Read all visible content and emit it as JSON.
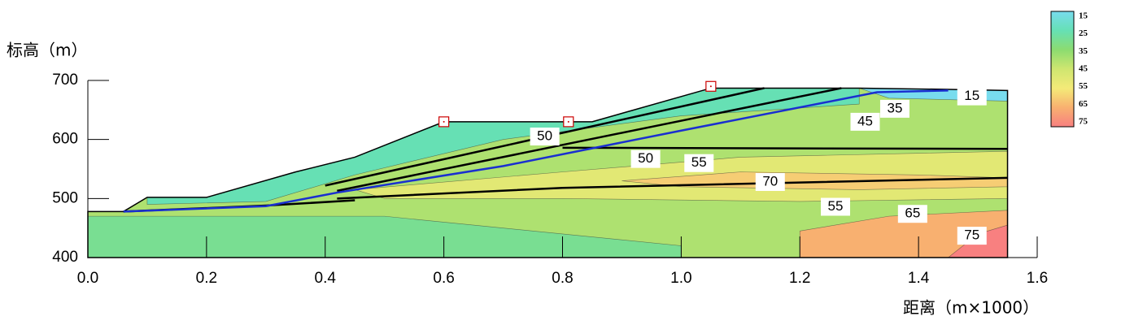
{
  "chart_data": {
    "type": "contour",
    "y_label": "标高（m）",
    "x_label": "距离（m×1000）",
    "xlim": [
      0,
      1.6
    ],
    "xticks": [
      {
        "value": 0,
        "label": "0.0"
      },
      0.2,
      0.4,
      0.6,
      0.8,
      {
        "value": 1,
        "label": "1.0"
      },
      1.2,
      1.4,
      1.6
    ],
    "ylim": [
      400,
      700
    ],
    "yticks": [
      400,
      500,
      600,
      700
    ],
    "colorbar": {
      "ticks": [
        15,
        25,
        35,
        45,
        55,
        65,
        75
      ],
      "colors": [
        "#78dcee",
        "#66e0b4",
        "#8cdc70",
        "#cfe670",
        "#f4ea78",
        "#f8b070",
        "#f88080"
      ]
    },
    "ground": {
      "value": 40,
      "x": [
        0,
        0.06,
        0.1,
        0.2,
        0.35,
        0.45,
        0.6,
        0.85,
        1.05,
        1.3,
        1.44,
        1.55,
        1.55,
        0
      ],
      "y": [
        478,
        478,
        502,
        502,
        545,
        570,
        630,
        630,
        687,
        687,
        685,
        683,
        400,
        400
      ]
    },
    "zones": [
      {
        "value": 30,
        "x": [
          0,
          0.5,
          0.7,
          1.0,
          1.0,
          0
        ],
        "y": [
          470,
          470,
          450,
          420,
          400,
          400
        ]
      },
      {
        "value": 25,
        "x": [
          0.1,
          0.2,
          0.35,
          0.45,
          0.6,
          0.85,
          1.05,
          1.3,
          1.3,
          1.0,
          0.7,
          0.45,
          0.3,
          0.1
        ],
        "y": [
          502,
          502,
          545,
          570,
          630,
          630,
          687,
          687,
          660,
          640,
          600,
          540,
          495,
          490
        ]
      },
      {
        "value": 15,
        "x": [
          1.3,
          1.44,
          1.55,
          1.55,
          1.35
        ],
        "y": [
          687,
          685,
          683,
          665,
          670
        ]
      },
      {
        "value": 50,
        "x": [
          0.45,
          0.8,
          1.1,
          1.55,
          1.55,
          1.2,
          0.8,
          0.5
        ],
        "y": [
          515,
          545,
          570,
          580,
          500,
          495,
          500,
          500
        ]
      },
      {
        "value": 60,
        "x": [
          0.9,
          1.1,
          1.4,
          1.55,
          1.55,
          1.3,
          1.0
        ],
        "y": [
          530,
          545,
          540,
          535,
          520,
          515,
          520
        ]
      },
      {
        "value": 65,
        "x": [
          1.2,
          1.35,
          1.55,
          1.55,
          1.2
        ],
        "y": [
          445,
          470,
          480,
          400,
          400
        ]
      },
      {
        "value": 75,
        "x": [
          1.45,
          1.5,
          1.55,
          1.55
        ],
        "y": [
          400,
          440,
          455,
          400
        ]
      }
    ],
    "layer_boundaries": [
      {
        "x": [
          0.4,
          1.14
        ],
        "y": [
          522,
          687
        ]
      },
      {
        "x": [
          0.42,
          1.27
        ],
        "y": [
          513,
          687
        ]
      },
      {
        "x": [
          0.42,
          0.8,
          1.55
        ],
        "y": [
          500,
          518,
          535
        ]
      },
      {
        "x": [
          0.06,
          0.3,
          0.45
        ],
        "y": [
          478,
          488,
          497
        ]
      },
      {
        "x": [
          0.8,
          1.55
        ],
        "y": [
          586,
          584
        ]
      }
    ],
    "slip_surface": {
      "x": [
        0.06,
        0.3,
        0.42,
        0.7,
        1.0,
        1.33,
        1.45
      ],
      "y": [
        478,
        487,
        510,
        555,
        615,
        680,
        683
      ]
    },
    "boreholes": {
      "x": [
        0.6,
        0.81,
        1.05
      ],
      "y": [
        630,
        630,
        690
      ]
    },
    "contour_labels": [
      {
        "value": 15,
        "x": 1.49,
        "y": 673
      },
      {
        "value": 35,
        "x": 1.36,
        "y": 652
      },
      {
        "value": 45,
        "x": 1.31,
        "y": 630
      },
      {
        "value": 50,
        "x": 0.77,
        "y": 605
      },
      {
        "value": 50,
        "x": 0.94,
        "y": 567
      },
      {
        "value": 55,
        "x": 1.03,
        "y": 560
      },
      {
        "value": 70,
        "x": 1.15,
        "y": 528
      },
      {
        "value": 55,
        "x": 1.26,
        "y": 486
      },
      {
        "value": 65,
        "x": 1.39,
        "y": 474
      },
      {
        "value": 75,
        "x": 1.49,
        "y": 437
      }
    ]
  }
}
